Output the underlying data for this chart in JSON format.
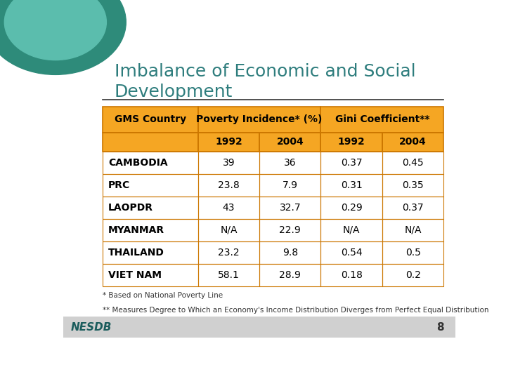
{
  "title_line1": "Imbalance of Economic and Social",
  "title_line2": "Development",
  "title_color": "#2E7D7D",
  "background_color": "#FFFFFF",
  "rows": [
    [
      "CAMBODIA",
      "39",
      "36",
      "0.37",
      "0.45"
    ],
    [
      "PRC",
      "23.8",
      "7.9",
      "0.31",
      "0.35"
    ],
    [
      "LAOPDR",
      "43",
      "32.7",
      "0.29",
      "0.37"
    ],
    [
      "MYANMAR",
      "N/A",
      "22.9",
      "N/A",
      "N/A"
    ],
    [
      "THAILAND",
      "23.2",
      "9.8",
      "0.54",
      "0.5"
    ],
    [
      "VIET NAM",
      "58.1",
      "28.9",
      "0.18",
      "0.2"
    ]
  ],
  "footnote1": "* Based on National Poverty Line",
  "footnote2": "** Measures Degree to Which an Economy's Income Distribution Diverges from Perfect Equal Distribution",
  "footer_text": "NESDB",
  "footer_page": "8",
  "header_bg": "#F5A623",
  "border_color": "#CC7700",
  "teal_dark": "#2E8B7A",
  "teal_light": "#5BBDAD"
}
